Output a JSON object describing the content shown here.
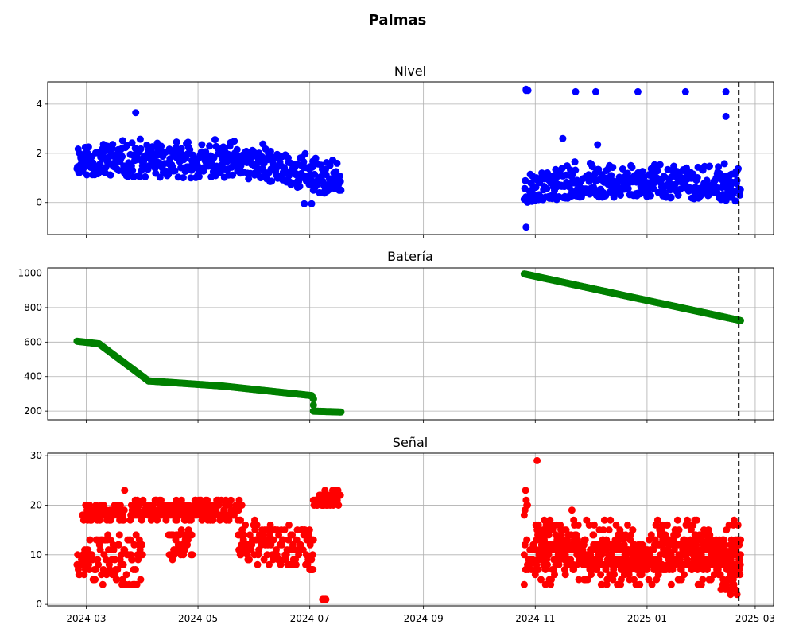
{
  "figure": {
    "title": "Palmas"
  },
  "colors": {
    "nivel": "#0000ff",
    "bateria": "#008000",
    "senal": "#ff0000",
    "grid": "#b0b0b0",
    "axis": "#000000",
    "marker_line": "#000000"
  },
  "chart_data": [
    {
      "id": "nivel",
      "type": "scatter",
      "title": "Nivel",
      "xlabel": "",
      "ylabel": "",
      "x_is_date": true,
      "xlim": [
        "2024-02-09",
        "2025-03-11"
      ],
      "ylim": [
        -1.3,
        4.9
      ],
      "yticks": [
        0,
        2,
        4
      ],
      "xticks": [
        "2024-03",
        "2024-05",
        "2024-07",
        "2024-09",
        "2024-11",
        "2025-01",
        "2025-03"
      ],
      "show_xtick_labels": false,
      "grid": true,
      "vline_date": "2025-02-20",
      "vline_style": "dashed",
      "series": [
        {
          "color": "#0000ff",
          "segments": [
            {
              "start": "2024-02-25",
              "end": "2024-07-18",
              "step_days": 0.3,
              "baseline": [
                [
                  0,
                  1.85
                ],
                [
                  40,
                  1.75
                ],
                [
                  80,
                  1.75
                ],
                [
                  100,
                  1.65
                ],
                [
                  125,
                  1.3
                ],
                [
                  144,
                  0.9
                ]
              ],
              "spread_low": 0.75,
              "spread_high": 0.85,
              "seed": 11
            },
            {
              "start": "2024-10-26",
              "end": "2025-02-21",
              "step_days": 0.3,
              "baseline": [
                [
                  0,
                  0.5
                ],
                [
                  10,
                  0.75
                ],
                [
                  60,
                  0.9
                ],
                [
                  118,
                  0.7
                ]
              ],
              "spread_low": 0.65,
              "spread_high": 0.9,
              "seed": 23
            }
          ],
          "extra_points": [
            [
              "2024-03-28",
              3.65
            ],
            [
              "2024-10-27",
              4.55
            ],
            [
              "2024-10-27",
              4.6
            ],
            [
              "2024-10-28",
              4.55
            ],
            [
              "2024-10-27",
              -1.0
            ],
            [
              "2024-11-23",
              4.5
            ],
            [
              "2024-12-04",
              4.5
            ],
            [
              "2024-12-27",
              4.5
            ],
            [
              "2025-01-22",
              4.5
            ],
            [
              "2025-02-13",
              4.5
            ],
            [
              "2025-02-13",
              3.5
            ],
            [
              "2024-11-16",
              2.6
            ],
            [
              "2024-12-05",
              2.35
            ],
            [
              "2024-07-02",
              -0.05
            ],
            [
              "2024-06-28",
              -0.05
            ]
          ]
        }
      ]
    },
    {
      "id": "bateria",
      "type": "scatter",
      "title": "Batería",
      "xlabel": "",
      "ylabel": "",
      "x_is_date": true,
      "xlim": [
        "2024-02-09",
        "2025-03-11"
      ],
      "ylim": [
        150,
        1030
      ],
      "yticks": [
        200,
        400,
        600,
        800,
        1000
      ],
      "xticks": [
        "2024-03",
        "2024-05",
        "2024-07",
        "2024-09",
        "2024-11",
        "2025-01",
        "2025-03"
      ],
      "show_xtick_labels": false,
      "grid": true,
      "vline_date": "2025-02-20",
      "vline_style": "dashed",
      "series": [
        {
          "color": "#008000",
          "polyline": [
            [
              "2024-02-25",
              605
            ],
            [
              "2024-03-08",
              590
            ],
            [
              "2024-04-04",
              375
            ],
            [
              "2024-05-15",
              345
            ],
            [
              "2024-07-02",
              290
            ],
            [
              "2024-07-03",
              270
            ],
            [
              "2024-07-03",
              200
            ],
            [
              "2024-07-18",
              195
            ],
            [
              "2024-10-26",
              995
            ],
            [
              "2025-02-21",
              725
            ]
          ],
          "gap_after_index": 7,
          "step_days": 0.5
        }
      ]
    },
    {
      "id": "senal",
      "type": "scatter",
      "title": "Señal",
      "xlabel": "",
      "ylabel": "",
      "x_is_date": true,
      "xlim": [
        "2024-02-09",
        "2025-03-11"
      ],
      "ylim": [
        -0.3,
        30.5
      ],
      "yticks": [
        0,
        10,
        20,
        30
      ],
      "xticks": [
        "2024-03",
        "2024-05",
        "2024-07",
        "2024-09",
        "2024-11",
        "2025-01",
        "2025-03"
      ],
      "show_xtick_labels": true,
      "grid": true,
      "vline_date": "2025-02-20",
      "vline_style": "dashed",
      "series": [
        {
          "color": "#ff0000",
          "bands": [
            {
              "start": "2024-02-25",
              "end": "2024-03-02",
              "lo": 6,
              "hi": 12
            },
            {
              "start": "2024-02-28",
              "end": "2024-03-22",
              "lo": 17,
              "hi": 20
            },
            {
              "start": "2024-03-02",
              "end": "2024-04-01",
              "lo": 4,
              "hi": 14
            },
            {
              "start": "2024-03-25",
              "end": "2024-05-25",
              "lo": 17,
              "hi": 21
            },
            {
              "start": "2024-04-15",
              "end": "2024-04-28",
              "lo": 9,
              "hi": 15
            },
            {
              "start": "2024-05-23",
              "end": "2024-07-03",
              "lo": 8,
              "hi": 16
            },
            {
              "start": "2024-07-01",
              "end": "2024-07-03",
              "lo": 7,
              "hi": 7
            },
            {
              "start": "2024-07-03",
              "end": "2024-07-18",
              "lo": 20,
              "hi": 23
            },
            {
              "start": "2024-07-08",
              "end": "2024-07-10",
              "lo": 1,
              "hi": 1
            },
            {
              "start": "2024-10-26",
              "end": "2024-10-28",
              "lo": 18,
              "hi": 25
            },
            {
              "start": "2024-10-26",
              "end": "2025-02-21",
              "lo": 7,
              "hi": 13
            },
            {
              "start": "2024-11-01",
              "end": "2025-02-21",
              "lo": 4,
              "hi": 17
            },
            {
              "start": "2025-02-10",
              "end": "2025-02-21",
              "lo": 2,
              "hi": 11
            }
          ],
          "step_days": 0.35,
          "extra_points": [
            [
              "2024-11-02",
              29
            ],
            [
              "2024-03-22",
              23
            ],
            [
              "2024-10-26",
              4
            ],
            [
              "2024-12-28",
              4
            ],
            [
              "2024-12-10",
              4
            ],
            [
              "2025-01-27",
              17
            ],
            [
              "2024-11-21",
              19
            ],
            [
              "2024-06-22",
              8
            ],
            [
              "2024-06-01",
              17
            ]
          ],
          "seed": 37
        }
      ]
    }
  ]
}
